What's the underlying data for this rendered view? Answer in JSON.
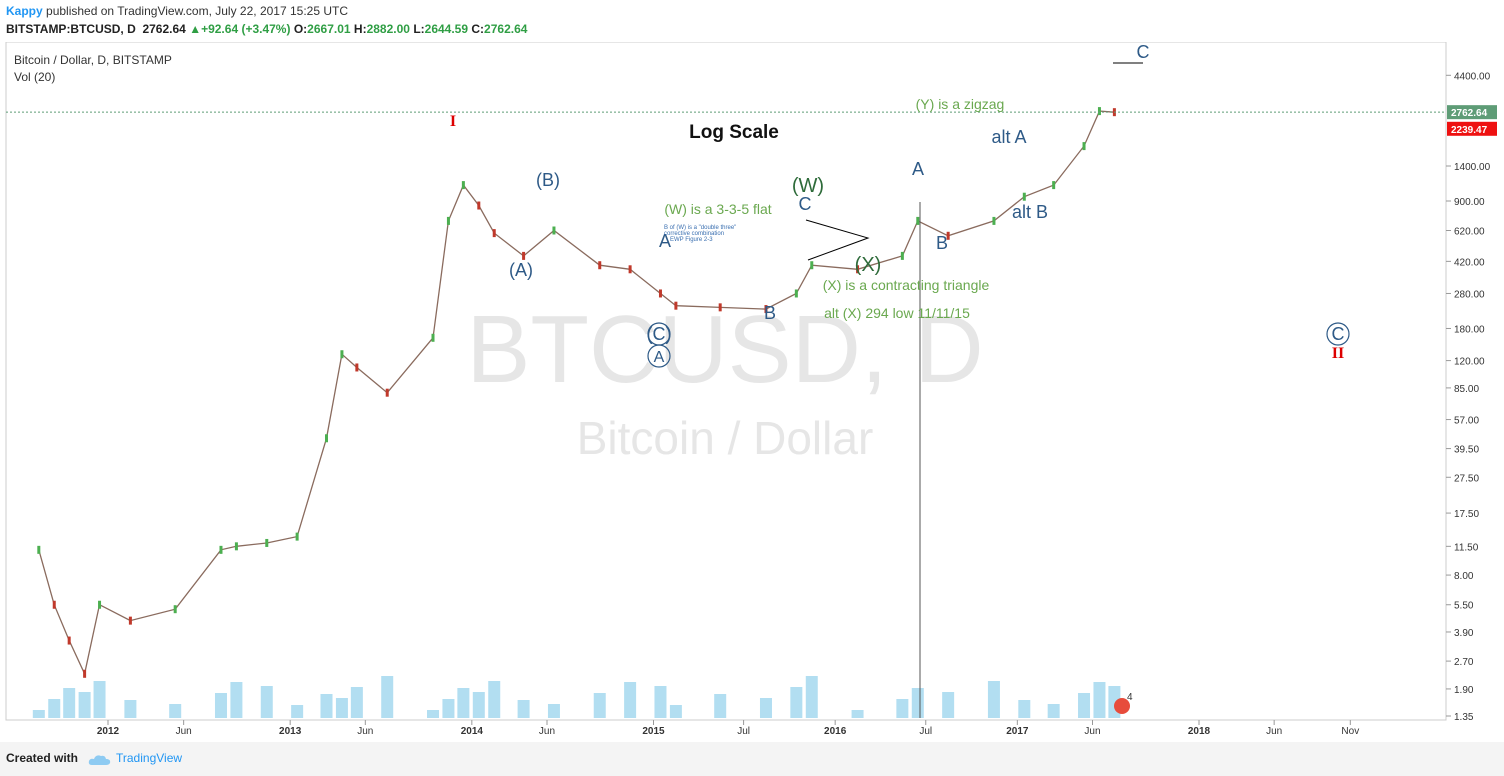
{
  "header": {
    "user": "Kappy",
    "published": "published on TradingView.com, July 22, 2017 15:25 UTC",
    "ticker": "BITSTAMP:BTCUSD, D",
    "last": "2762.64",
    "change": "+92.64 (+3.47%)",
    "ohlc": {
      "o_label": "O:",
      "o": "2667.01",
      "h_label": "H:",
      "h": "2882.00",
      "l_label": "L:",
      "l": "2644.59",
      "c_label": "C:",
      "c": "2762.64"
    }
  },
  "legend": {
    "symbol": "Bitcoin / Dollar, D, BITSTAMP",
    "volume": "Vol (20)"
  },
  "watermark": {
    "symbol": "BTCUSD, D",
    "name": "Bitcoin / Dollar"
  },
  "footer": {
    "created": "Created with",
    "brand": "TradingView"
  },
  "colors": {
    "up": "#4caf50",
    "down": "#c0392b",
    "wave": "#2e5a87",
    "green_text": "#6aa84f",
    "red": "#dd0000",
    "volume": "#7fc8e8",
    "last_badge": "#5e9c76",
    "red_badge": "#ee1111"
  },
  "chart_data": {
    "type": "line",
    "scale": "log",
    "title": "Log Scale",
    "y_ticks": [
      4400,
      2762.64,
      1400,
      900,
      620,
      420,
      280,
      180,
      120,
      85,
      57,
      39.5,
      27.5,
      17.5,
      11.5,
      8,
      5.5,
      3.9,
      2.7,
      1.9,
      1.35
    ],
    "y_tick_labels": [
      "4400.00",
      "2762.64",
      "1400.00",
      "900.00",
      "620.00",
      "420.00",
      "280.00",
      "180.00",
      "120.00",
      "85.00",
      "57.00",
      "39.50",
      "27.50",
      "17.50",
      "11.50",
      "8.00",
      "5.50",
      "3.90",
      "2.70",
      "1.90",
      "1.35"
    ],
    "price_badges": [
      {
        "value": 2762.64,
        "label": "2762.64"
      },
      {
        "value": 2239.47,
        "label": "2239.47"
      }
    ],
    "x_labels": [
      "2012",
      "Jun",
      "2013",
      "Jun",
      "2014",
      "Jun",
      "2015",
      "Jul",
      "2016",
      "Jul",
      "2017",
      "Jun",
      "2018",
      "Jun",
      "Nov"
    ],
    "x_label_dates": [
      "2012-01",
      "2012-06",
      "2013-01",
      "2013-06",
      "2014-01",
      "2014-06",
      "2015-01",
      "2015-07",
      "2016-01",
      "2016-07",
      "2017-01",
      "2017-06",
      "2018-01",
      "2018-06",
      "2018-11"
    ],
    "series": [
      {
        "x": [
          "2011-08",
          "2011-09",
          "2011-10",
          "2011-11",
          "2011-12",
          "2012-02",
          "2012-05",
          "2012-08",
          "2012-09",
          "2012-11",
          "2013-01",
          "2013-03",
          "2013-04",
          "2013-05",
          "2013-07",
          "2013-10",
          "2013-11",
          "2013-12",
          "2014-01",
          "2014-02",
          "2014-04",
          "2014-06",
          "2014-09",
          "2014-11",
          "2015-01",
          "2015-02",
          "2015-05",
          "2015-08",
          "2015-10",
          "2015-11",
          "2016-02",
          "2016-05",
          "2016-06",
          "2016-08",
          "2016-11",
          "2017-01",
          "2017-03",
          "2017-05",
          "2017-06",
          "2017-07"
        ],
        "values": [
          11,
          5.5,
          3.5,
          2.3,
          5.5,
          4.5,
          5.2,
          11,
          11.5,
          12,
          13,
          45,
          130,
          110,
          80,
          160,
          700,
          1100,
          850,
          600,
          450,
          620,
          400,
          380,
          280,
          240,
          235,
          230,
          280,
          400,
          380,
          450,
          700,
          580,
          700,
          950,
          1100,
          1800,
          2800,
          2762.64
        ]
      }
    ],
    "annotations": [
      "I",
      "(A)",
      "(B)",
      "(C)",
      "A",
      "B",
      "C",
      "(W)",
      "(X)",
      "(W) is a 3-3-5 flat",
      "B of (W) is a \"double three\"",
      "corrective combination",
      "EWP Figure 2-3",
      "(X) is a contracting triangle",
      "alt (X) 294 low 11/11/15",
      "A",
      "B",
      "alt A",
      "alt B",
      "C",
      "(Y) is a zigzag",
      "C",
      "II"
    ],
    "volume_labels": [
      "4"
    ]
  }
}
